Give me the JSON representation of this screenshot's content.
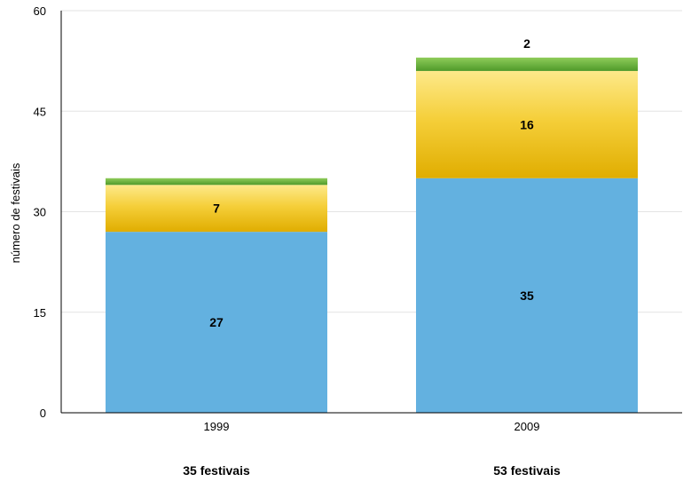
{
  "chart_data": {
    "type": "bar",
    "stacked": true,
    "categories": [
      "1999",
      "2009"
    ],
    "series": [
      {
        "values": [
          27,
          35
        ],
        "color": "#63b1e0"
      },
      {
        "values": [
          7,
          16
        ],
        "color": "#f2c718"
      },
      {
        "values": [
          1,
          2
        ],
        "color": "#6aab3e"
      }
    ],
    "data_labels": [
      [
        "27",
        "7",
        ""
      ],
      [
        "35",
        "16",
        "2"
      ]
    ],
    "totals": [
      "35 festivais",
      "53 festivais"
    ],
    "ylabel": "número de festivais",
    "ylim": [
      0,
      60
    ],
    "yticks": [
      "0",
      "15",
      "30",
      "45",
      "60"
    ],
    "grid": true
  }
}
